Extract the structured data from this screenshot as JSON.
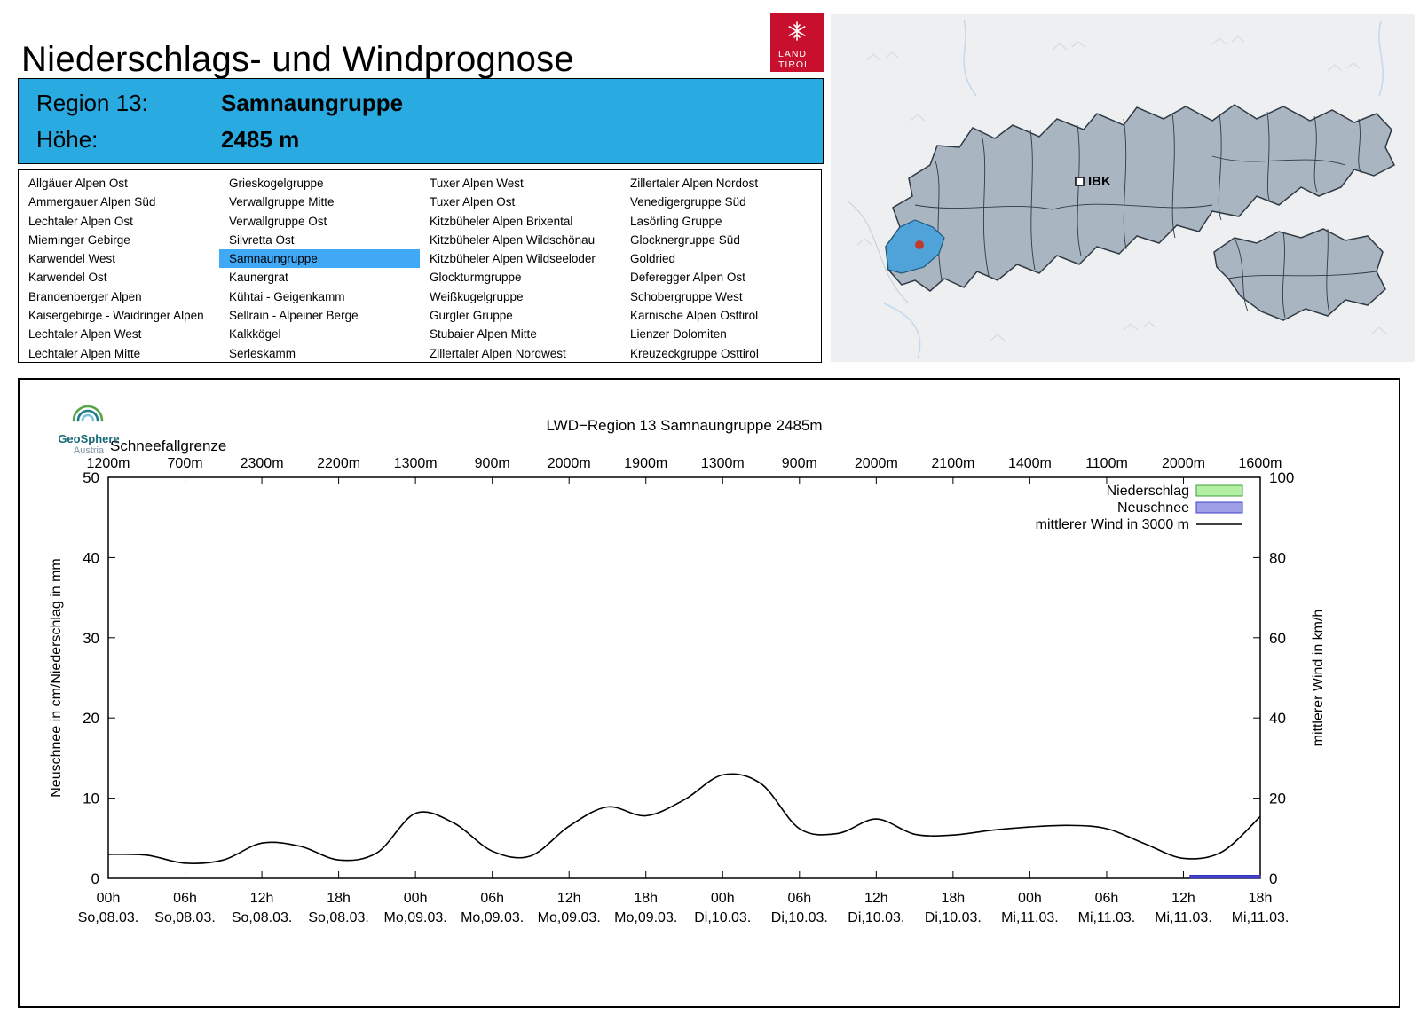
{
  "page": {
    "title": "Niederschlags- und Windprognose"
  },
  "land_tirol_logo": {
    "line1": "LAND",
    "line2": "TIROL",
    "bg": "#c8102e"
  },
  "region_header": {
    "region_label": "Region 13:",
    "region_value": "Samnaungruppe",
    "altitude_label": "Höhe:",
    "altitude_value": "2485 m",
    "bg": "#29abe2"
  },
  "region_list": {
    "selected": "Samnaungruppe",
    "highlight_color": "#3fa9f5",
    "columns": [
      [
        "Allgäuer Alpen Ost",
        "Ammergauer Alpen Süd",
        "Lechtaler Alpen Ost",
        "Mieminger Gebirge",
        "Karwendel West",
        "Karwendel Ost",
        "Brandenberger Alpen",
        "Kaisergebirge - Waidringer Alpen",
        "Lechtaler Alpen West",
        "Lechtaler Alpen Mitte"
      ],
      [
        "Grieskogelgruppe",
        "Verwallgruppe Mitte",
        "Verwallgruppe Ost",
        "Silvretta Ost",
        "Samnaungruppe",
        "Kaunergrat",
        "Kühtai - Geigenkamm",
        "Sellrain - Alpeiner Berge",
        "Kalkkögel",
        "Serleskamm"
      ],
      [
        "Tuxer Alpen West",
        "Tuxer Alpen Ost",
        "Kitzbüheler Alpen Brixental",
        "Kitzbüheler Alpen Wildschönau",
        "Kitzbüheler Alpen Wildseeloder",
        "Glockturmgruppe",
        "Weißkugelgruppe",
        "Gurgler Gruppe",
        "Stubaier Alpen Mitte",
        "Zillertaler Alpen Nordwest"
      ],
      [
        "Zillertaler Alpen Nordost",
        "Venedigergruppe Süd",
        "Lasörling Gruppe",
        "Glocknergruppe Süd",
        "Goldried",
        "Deferegger Alpen Ost",
        "Schobergruppe West",
        "Karnische Alpen Osttirol",
        "Lienzer Dolomiten",
        "Kreuzeckgruppe Osttirol"
      ]
    ]
  },
  "map": {
    "ibk_label": "IBK",
    "region_fill": "#a9b5c1",
    "highlight_fill": "#4fa3d8",
    "marker_color": "#c0392b"
  },
  "geosphere_logo": {
    "name": "GeoSphere",
    "country": "Austria"
  },
  "chart_data": {
    "type": "line",
    "title": "LWD−Region 13 Samnaungruppe 2485m",
    "top_axis_title": "Schneefallgrenze",
    "snowfall_limit_labels": [
      "1200m",
      "700m",
      "2300m",
      "2200m",
      "1300m",
      "900m",
      "2000m",
      "1900m",
      "1300m",
      "900m",
      "2000m",
      "2100m",
      "1400m",
      "1100m",
      "2000m",
      "1600m"
    ],
    "x_span_hours": 90,
    "x_ticks": [
      {
        "hour_label": "00h",
        "date_label": "So,08.03."
      },
      {
        "hour_label": "06h",
        "date_label": "So,08.03."
      },
      {
        "hour_label": "12h",
        "date_label": "So,08.03."
      },
      {
        "hour_label": "18h",
        "date_label": "So,08.03."
      },
      {
        "hour_label": "00h",
        "date_label": "Mo,09.03."
      },
      {
        "hour_label": "06h",
        "date_label": "Mo,09.03."
      },
      {
        "hour_label": "12h",
        "date_label": "Mo,09.03."
      },
      {
        "hour_label": "18h",
        "date_label": "Mo,09.03."
      },
      {
        "hour_label": "00h",
        "date_label": "Di,10.03."
      },
      {
        "hour_label": "06h",
        "date_label": "Di,10.03."
      },
      {
        "hour_label": "12h",
        "date_label": "Di,10.03."
      },
      {
        "hour_label": "18h",
        "date_label": "Di,10.03."
      },
      {
        "hour_label": "00h",
        "date_label": "Mi,11.03."
      },
      {
        "hour_label": "06h",
        "date_label": "Mi,11.03."
      },
      {
        "hour_label": "12h",
        "date_label": "Mi,11.03."
      },
      {
        "hour_label": "18h",
        "date_label": "Mi,11.03."
      }
    ],
    "ylabel_left": "Neuschnee in cm/Niederschlag in mm",
    "ylabel_right": "mittlerer Wind in km/h",
    "ylim_left": [
      0,
      50
    ],
    "yticks_left": [
      0,
      10,
      20,
      30,
      40,
      50
    ],
    "ylim_right": [
      0,
      100
    ],
    "yticks_right": [
      0,
      20,
      40,
      60,
      80,
      100
    ],
    "legend": [
      {
        "label": "Niederschlag",
        "swatch": "box",
        "fill": "#b4f0a4",
        "border": "#3c9e3c"
      },
      {
        "label": "Neuschnee",
        "swatch": "box",
        "fill": "#9f9fe8",
        "border": "#4040c8"
      },
      {
        "label": "mittlerer Wind in 3000 m",
        "swatch": "line",
        "color": "#000000"
      }
    ],
    "series": [
      {
        "name": "mittlerer Wind in 3000 m",
        "type": "line",
        "axis": "left",
        "x_hours": [
          0,
          3,
          6,
          9,
          12,
          15,
          18,
          21,
          24,
          27,
          30,
          33,
          36,
          39,
          42,
          45,
          48,
          51,
          54,
          57,
          60,
          63,
          66,
          69,
          72,
          75,
          78,
          81,
          84,
          87,
          90
        ],
        "values": [
          3.0,
          2.9,
          1.9,
          2.3,
          4.4,
          4.0,
          2.3,
          3.2,
          8.1,
          6.9,
          3.4,
          2.8,
          6.5,
          8.9,
          7.8,
          9.8,
          12.9,
          11.8,
          6.2,
          5.6,
          7.4,
          5.5,
          5.4,
          6.0,
          6.4,
          6.6,
          6.2,
          4.3,
          2.5,
          3.3,
          7.7
        ]
      },
      {
        "name": "Neuschnee",
        "type": "bar",
        "axis": "left",
        "fill": "#4444cc",
        "border": "#3333bb",
        "segments": [
          {
            "from_hour": 84.5,
            "to_hour": 90,
            "value_cm": 0.4
          }
        ]
      }
    ]
  }
}
